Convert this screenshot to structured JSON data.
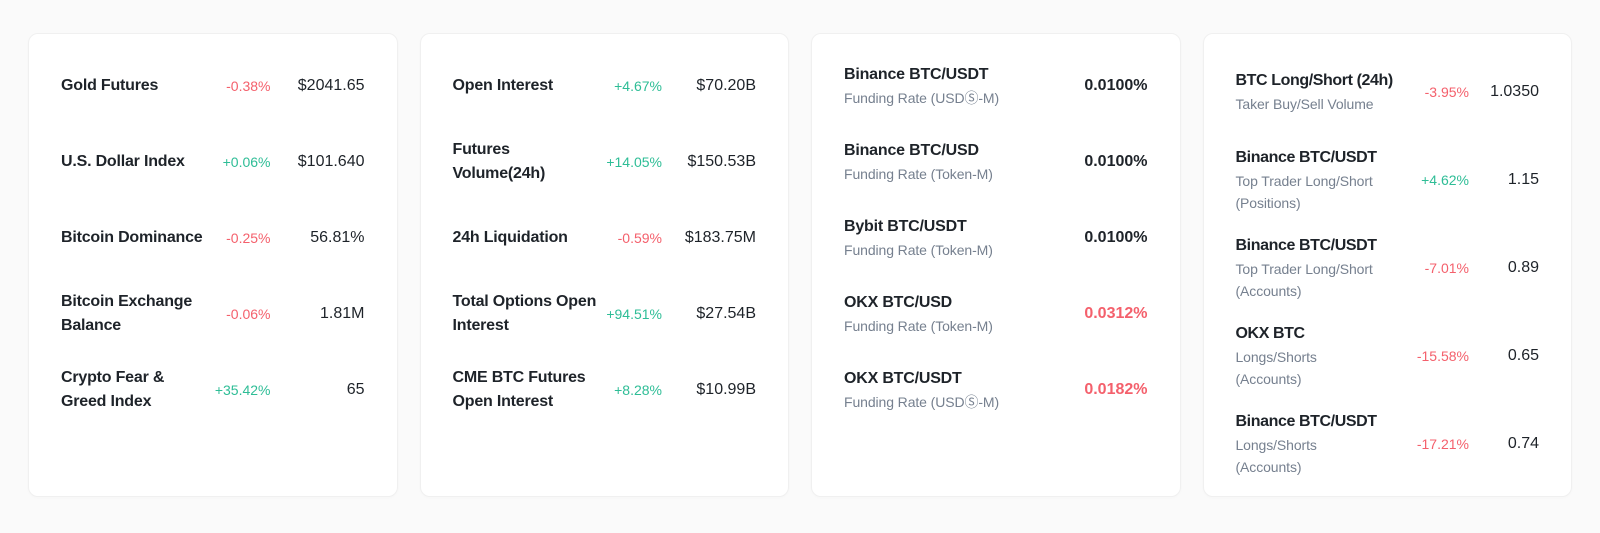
{
  "theme": {
    "page_bg": "#fafafa",
    "card_bg": "#ffffff",
    "card_border": "#f0f0f0",
    "title_color": "#1e2329",
    "subtitle_color": "#76808f",
    "value_color": "#1e2329",
    "up_color": "#2ebd96",
    "down_color": "#f4606c"
  },
  "cards": [
    {
      "id": "market-indicators",
      "rows": [
        {
          "label_lines": [
            "Gold Futures"
          ],
          "change": "-0.38%",
          "trend": "down",
          "value": "$2041.65"
        },
        {
          "label_lines": [
            "U.S. Dollar Index"
          ],
          "change": "+0.06%",
          "trend": "up",
          "value": "$101.640"
        },
        {
          "label_lines": [
            "Bitcoin Dominance"
          ],
          "change": "-0.25%",
          "trend": "down",
          "value": "56.81%"
        },
        {
          "label_lines": [
            "Bitcoin Exchange",
            "Balance"
          ],
          "change": "-0.06%",
          "trend": "down",
          "value": "1.81M"
        },
        {
          "label_lines": [
            "Crypto Fear &",
            "Greed Index"
          ],
          "change": "+35.42%",
          "trend": "up",
          "value": "65"
        }
      ]
    },
    {
      "id": "futures-data",
      "rows": [
        {
          "label_lines": [
            "Open Interest"
          ],
          "change": "+4.67%",
          "trend": "up",
          "value": "$70.20B"
        },
        {
          "label_lines": [
            "Futures",
            "Volume(24h)"
          ],
          "change": "+14.05%",
          "trend": "up",
          "value": "$150.53B"
        },
        {
          "label_lines": [
            "24h Liquidation"
          ],
          "change": "-0.59%",
          "trend": "down",
          "value": "$183.75M"
        },
        {
          "label_lines": [
            "Total Options Open",
            "Interest"
          ],
          "change": "+94.51%",
          "trend": "up",
          "value": "$27.54B"
        },
        {
          "label_lines": [
            "CME BTC Futures",
            "Open Interest"
          ],
          "change": "+8.28%",
          "trend": "up",
          "value": "$10.99B"
        }
      ]
    },
    {
      "id": "funding-rates",
      "rows": [
        {
          "title": "Binance BTC/USDT",
          "subtitle_lines": [
            "Funding Rate (USDⓈ-M)"
          ],
          "value": "0.0100%",
          "value_trend": "neutral"
        },
        {
          "title": "Binance BTC/USD",
          "subtitle_lines": [
            "Funding Rate (Token-M)"
          ],
          "value": "0.0100%",
          "value_trend": "neutral"
        },
        {
          "title": "Bybit BTC/USDT",
          "subtitle_lines": [
            "Funding Rate (Token-M)"
          ],
          "value": "0.0100%",
          "value_trend": "neutral"
        },
        {
          "title": "OKX BTC/USD",
          "subtitle_lines": [
            "Funding Rate (Token-M)"
          ],
          "value": "0.0312%",
          "value_trend": "down"
        },
        {
          "title": "OKX BTC/USDT",
          "subtitle_lines": [
            "Funding Rate (USDⓈ-M)"
          ],
          "value": "0.0182%",
          "value_trend": "down"
        }
      ]
    },
    {
      "id": "long-short-ratios",
      "rows": [
        {
          "title": "BTC Long/Short (24h)",
          "subtitle_lines": [
            "Taker Buy/Sell Volume"
          ],
          "change": "-3.95%",
          "trend": "down",
          "value": "1.0350"
        },
        {
          "title": "Binance BTC/USDT",
          "subtitle_lines": [
            "Top Trader Long/Short",
            "(Positions)"
          ],
          "change": "+4.62%",
          "trend": "up",
          "value": "1.15"
        },
        {
          "title": "Binance BTC/USDT",
          "subtitle_lines": [
            "Top Trader Long/Short",
            "(Accounts)"
          ],
          "change": "-7.01%",
          "trend": "down",
          "value": "0.89"
        },
        {
          "title": "OKX BTC",
          "subtitle_lines": [
            "Longs/Shorts",
            "(Accounts)"
          ],
          "change": "-15.58%",
          "trend": "down",
          "value": "0.65"
        },
        {
          "title": "Binance BTC/USDT",
          "subtitle_lines": [
            "Longs/Shorts",
            "(Accounts)"
          ],
          "change": "-17.21%",
          "trend": "down",
          "value": "0.74"
        }
      ]
    }
  ]
}
